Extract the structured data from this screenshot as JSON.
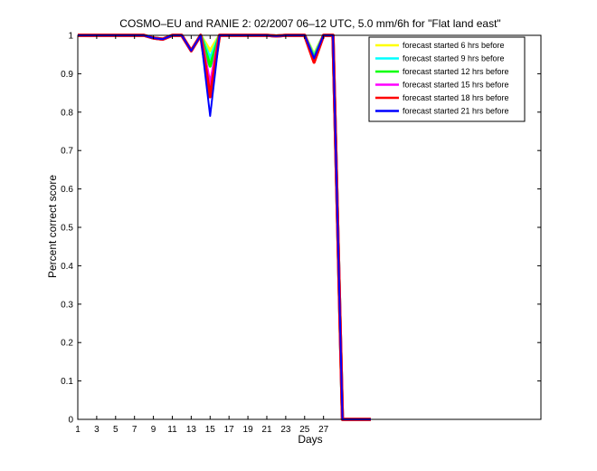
{
  "chart_data": {
    "type": "line",
    "title": "COSMO–EU and RANIE 2: 02/2007 06–12 UTC, 5.0 mm/6h for \"Flat land east\"",
    "xlabel": "Days",
    "ylabel": "Percent correct score",
    "xlim": [
      1,
      50
    ],
    "ylim": [
      0,
      1
    ],
    "xticks": [
      1,
      3,
      5,
      7,
      9,
      11,
      13,
      15,
      17,
      19,
      21,
      23,
      25,
      27
    ],
    "yticks": [
      0,
      0.1,
      0.2,
      0.3,
      0.4,
      0.5,
      0.6,
      0.7,
      0.8,
      0.9,
      1
    ],
    "legend_position": "top-right",
    "x": [
      1,
      2,
      3,
      4,
      5,
      6,
      7,
      8,
      9,
      10,
      11,
      12,
      13,
      14,
      15,
      16,
      17,
      18,
      19,
      20,
      21,
      22,
      23,
      24,
      25,
      26,
      27,
      28,
      29,
      30,
      31,
      32
    ],
    "series": [
      {
        "name": "forecast started 6 hrs before",
        "color": "#ffff00",
        "values": [
          1,
          1,
          1,
          1,
          1,
          1,
          1,
          1,
          0.993,
          0.99,
          1,
          1,
          0.96,
          1,
          0.96,
          1,
          1,
          1,
          1,
          1,
          1,
          0.998,
          1,
          1,
          1,
          0.95,
          1,
          1,
          0,
          0,
          0,
          0
        ]
      },
      {
        "name": "forecast started 9 hrs before",
        "color": "#00ffff",
        "values": [
          1,
          1,
          1,
          1,
          1,
          1,
          1,
          1,
          0.993,
          0.99,
          1,
          1,
          0.96,
          1,
          0.94,
          1,
          1,
          1,
          1,
          1,
          1,
          0.998,
          1,
          1,
          1,
          0.945,
          1,
          1,
          0,
          0,
          0,
          0
        ]
      },
      {
        "name": "forecast started 12 hrs before",
        "color": "#00ff00",
        "values": [
          1,
          1,
          1,
          1,
          1,
          1,
          1,
          1,
          0.993,
          0.99,
          1,
          1,
          0.96,
          1,
          0.92,
          1,
          1,
          1,
          1,
          1,
          1,
          0.998,
          1,
          1,
          1,
          0.94,
          1,
          1,
          0,
          0,
          0,
          0
        ]
      },
      {
        "name": "forecast started 15 hrs before",
        "color": "#ff00ff",
        "values": [
          1,
          1,
          1,
          1,
          1,
          1,
          1,
          1,
          0.993,
          0.99,
          1,
          1,
          0.96,
          1,
          0.87,
          1,
          1,
          1,
          1,
          1,
          1,
          0.998,
          1,
          1,
          1,
          0.935,
          1,
          1,
          0,
          0,
          0,
          0
        ]
      },
      {
        "name": "forecast started 18 hrs before",
        "color": "#ff0000",
        "values": [
          1,
          1,
          1,
          1,
          1,
          1,
          1,
          1,
          0.993,
          0.99,
          1,
          1,
          0.96,
          1,
          0.84,
          1,
          1,
          1,
          1,
          1,
          1,
          0.998,
          1,
          1,
          1,
          0.93,
          1,
          1,
          0,
          0,
          0,
          0
        ]
      },
      {
        "name": "forecast started 21 hrs before",
        "color": "#0000ff",
        "values": [
          1,
          1,
          1,
          1,
          1,
          1,
          1,
          1,
          0.993,
          0.99,
          1,
          1,
          0.96,
          1,
          0.79,
          1,
          1,
          1,
          1,
          1,
          1,
          0.998,
          1,
          1,
          1,
          0.94,
          1,
          1,
          0,
          0,
          0,
          0
        ]
      }
    ]
  }
}
